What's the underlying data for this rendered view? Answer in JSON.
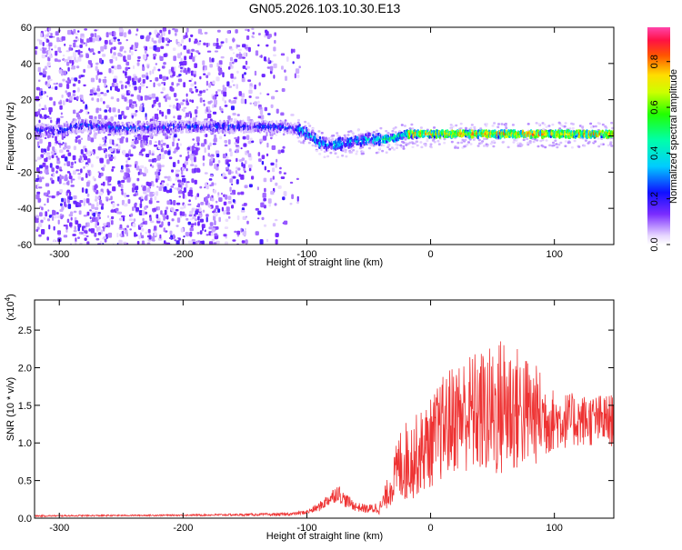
{
  "title": "GN05.2026.103.10.30.E13",
  "chart_data": [
    {
      "type": "heatmap",
      "xlabel": "Height of straight line (km)",
      "ylabel": "Frequency (Hz)",
      "xlim": [
        -320,
        148
      ],
      "ylim": [
        -60,
        60
      ],
      "xticks": [
        -300,
        -200,
        -100,
        0,
        100
      ],
      "yticks": [
        -60,
        -40,
        -20,
        0,
        20,
        40,
        60
      ],
      "colorbar": {
        "label": "Normalized spectral amplitude",
        "range": [
          0.0,
          0.95
        ],
        "ticks": [
          "0.0",
          "0.2",
          "0.4",
          "0.6",
          "0.8"
        ],
        "colormap": "rainbow"
      },
      "ridge": {
        "x": [
          -300,
          -280,
          -250,
          -200,
          -150,
          -120,
          -110,
          -100,
          -90,
          -80,
          -70,
          -60,
          -50,
          -40,
          -30,
          -20,
          -10,
          0,
          50,
          100,
          148
        ],
        "y": [
          3,
          6,
          4,
          5,
          5,
          5,
          4,
          1,
          -4,
          -5,
          -4,
          -3,
          -2,
          -2,
          -1,
          1,
          1,
          1,
          1,
          1,
          1
        ]
      }
    },
    {
      "type": "line",
      "xlabel": "Height of straight line (km)",
      "ylabel": "SNR (10 * v/v)",
      "scale_label": "(x10",
      "scale_exp": "4",
      "xlim": [
        -320,
        148
      ],
      "ylim": [
        0,
        2.9
      ],
      "xticks": [
        -300,
        -200,
        -100,
        0,
        100
      ],
      "yticks": [
        "0.0",
        "0.5",
        "1.0",
        "1.5",
        "2.0",
        "2.5"
      ],
      "color": "#ee3333",
      "envelope": {
        "x": [
          -320,
          -200,
          -120,
          -110,
          -100,
          -90,
          -80,
          -75,
          -70,
          -60,
          -50,
          -40,
          -30,
          -25,
          -20,
          -10,
          0,
          10,
          20,
          30,
          40,
          50,
          60,
          70,
          80,
          90,
          100,
          120,
          148
        ],
        "mean": [
          0.03,
          0.04,
          0.05,
          0.06,
          0.08,
          0.15,
          0.28,
          0.35,
          0.25,
          0.15,
          0.12,
          0.15,
          0.5,
          0.7,
          0.75,
          0.85,
          1.0,
          1.2,
          1.35,
          1.4,
          1.4,
          1.4,
          1.5,
          1.45,
          1.4,
          1.35,
          1.3,
          1.3,
          1.3
        ],
        "amp": [
          0.01,
          0.01,
          0.02,
          0.02,
          0.03,
          0.06,
          0.1,
          0.12,
          0.1,
          0.06,
          0.06,
          0.1,
          0.3,
          0.5,
          0.55,
          0.55,
          0.6,
          0.7,
          0.75,
          0.8,
          0.85,
          0.9,
          1.0,
          0.85,
          0.75,
          0.6,
          0.4,
          0.35,
          0.35
        ]
      }
    }
  ]
}
